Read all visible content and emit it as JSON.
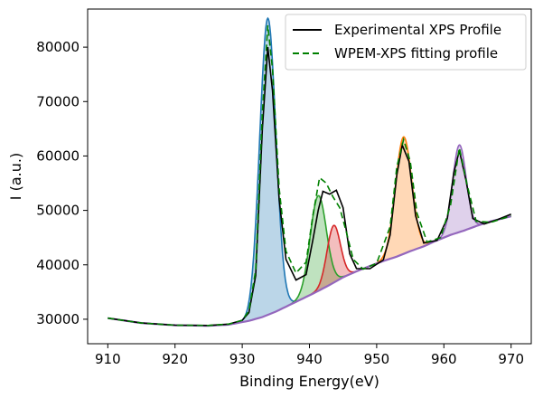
{
  "chart_data": {
    "type": "line",
    "title": "",
    "xlabel": "Binding Energy(eV)",
    "ylabel": "I (a.u.)",
    "xlim": [
      907,
      973
    ],
    "ylim": [
      25500,
      87000
    ],
    "xticks": [
      910,
      920,
      930,
      940,
      950,
      960,
      970
    ],
    "yticks": [
      30000,
      40000,
      50000,
      60000,
      70000,
      80000
    ],
    "grid": false,
    "legend": {
      "location": "upper right",
      "entries": [
        {
          "label": "Experimental XPS Profile",
          "color": "#000000",
          "style": "solid"
        },
        {
          "label": "WPEM-XPS fitting profile",
          "color": "#008000",
          "style": "dashed"
        }
      ]
    },
    "background": {
      "name": "background",
      "color": "#9467bd",
      "points": [
        [
          910,
          30200
        ],
        [
          915,
          29300
        ],
        [
          920,
          28900
        ],
        [
          925,
          28800
        ],
        [
          928,
          29000
        ],
        [
          931,
          29700
        ],
        [
          933,
          30400
        ],
        [
          935,
          31400
        ],
        [
          937,
          32600
        ],
        [
          939,
          33800
        ],
        [
          941,
          35000
        ],
        [
          943,
          36300
        ],
        [
          945,
          37700
        ],
        [
          947,
          38800
        ],
        [
          949,
          39800
        ],
        [
          951,
          40700
        ],
        [
          953,
          41500
        ],
        [
          955,
          42500
        ],
        [
          957,
          43400
        ],
        [
          959,
          44500
        ],
        [
          961,
          45500
        ],
        [
          963,
          46300
        ],
        [
          965,
          47200
        ],
        [
          967,
          48000
        ],
        [
          970,
          48900
        ]
      ]
    },
    "components": [
      {
        "name": "peak-1",
        "center": 933.8,
        "height": 54500,
        "sigma": 1.2,
        "color": "#1f77b4",
        "fill": "#1f77b4"
      },
      {
        "name": "peak-2",
        "center": 941.3,
        "height": 17500,
        "sigma": 1.2,
        "color": "#2ca02c",
        "fill": "#2ca02c"
      },
      {
        "name": "peak-3",
        "center": 943.6,
        "height": 10500,
        "sigma": 1.0,
        "color": "#d62728",
        "fill": "#d62728"
      },
      {
        "name": "peak-4",
        "center": 954.0,
        "height": 21500,
        "sigma": 1.2,
        "color": "#ff7f0e",
        "fill": "#ff7f0e"
      },
      {
        "name": "peak-5",
        "center": 962.3,
        "height": 16000,
        "sigma": 1.0,
        "color": "#9467bd",
        "fill": "#9467bd"
      }
    ],
    "series": [
      {
        "name": "Experimental XPS Profile",
        "color": "#000000",
        "points": [
          [
            910,
            30200
          ],
          [
            915,
            29300
          ],
          [
            920,
            28900
          ],
          [
            925,
            28850
          ],
          [
            928,
            29100
          ],
          [
            930,
            29800
          ],
          [
            931,
            31200
          ],
          [
            932,
            38000
          ],
          [
            933,
            65000
          ],
          [
            933.8,
            80000
          ],
          [
            934.5,
            72000
          ],
          [
            935.5,
            52000
          ],
          [
            936.5,
            41000
          ],
          [
            938,
            37200
          ],
          [
            939.5,
            38200
          ],
          [
            940.5,
            44500
          ],
          [
            941.3,
            50000
          ],
          [
            942,
            53500
          ],
          [
            943,
            53000
          ],
          [
            944,
            53700
          ],
          [
            945,
            50500
          ],
          [
            946,
            42000
          ],
          [
            947,
            39300
          ],
          [
            949,
            39300
          ],
          [
            951,
            40900
          ],
          [
            952,
            45500
          ],
          [
            953,
            56500
          ],
          [
            953.8,
            62000
          ],
          [
            954.8,
            59000
          ],
          [
            955.8,
            49000
          ],
          [
            957,
            44000
          ],
          [
            959,
            44500
          ],
          [
            960.5,
            48500
          ],
          [
            961.5,
            57000
          ],
          [
            962.3,
            61000
          ],
          [
            963.3,
            55500
          ],
          [
            964.3,
            48500
          ],
          [
            966,
            47500
          ],
          [
            968,
            48300
          ],
          [
            970,
            49300
          ]
        ]
      },
      {
        "name": "WPEM-XPS fitting profile",
        "color": "#008000",
        "dashed": true,
        "points": [
          [
            910,
            30200
          ],
          [
            915,
            29300
          ],
          [
            920,
            28900
          ],
          [
            925,
            28850
          ],
          [
            928,
            29100
          ],
          [
            930,
            29800
          ],
          [
            931,
            31500
          ],
          [
            932,
            39000
          ],
          [
            933,
            68000
          ],
          [
            933.8,
            84000
          ],
          [
            934.5,
            76000
          ],
          [
            935.5,
            54000
          ],
          [
            936.5,
            42500
          ],
          [
            938,
            38500
          ],
          [
            939.5,
            40500
          ],
          [
            940.5,
            49000
          ],
          [
            941.5,
            56000
          ],
          [
            942.5,
            55000
          ],
          [
            943.5,
            52500
          ],
          [
            944.5,
            50500
          ],
          [
            945.5,
            46000
          ],
          [
            946.5,
            41000
          ],
          [
            948,
            39200
          ],
          [
            950,
            40300
          ],
          [
            952,
            47000
          ],
          [
            953,
            58000
          ],
          [
            954,
            63000
          ],
          [
            955,
            59000
          ],
          [
            956,
            49500
          ],
          [
            957.5,
            44200
          ],
          [
            959.5,
            45000
          ],
          [
            961,
            51000
          ],
          [
            962.3,
            61500
          ],
          [
            963.5,
            54500
          ],
          [
            964.8,
            48000
          ],
          [
            967,
            47800
          ],
          [
            970,
            49000
          ]
        ]
      }
    ]
  }
}
